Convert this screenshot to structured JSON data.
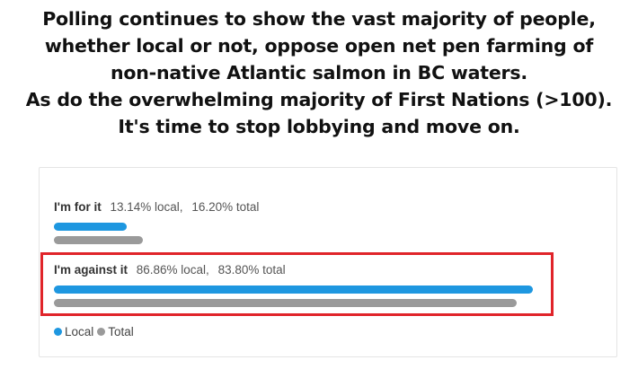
{
  "headline": {
    "lines": [
      "Polling continues to show the vast majority of people,",
      "whether local or not, oppose open net pen farming of",
      "non-native Atlantic salmon in BC waters.",
      "As do the overwhelming majority of First Nations (>100).",
      "It's time to stop lobbying and move on."
    ]
  },
  "colors": {
    "local": "#1e97e0",
    "total": "#9a9a9a",
    "highlight": "#e0242a"
  },
  "chart_data": {
    "type": "bar",
    "orientation": "horizontal",
    "categories": [
      "I'm for it",
      "I'm against it"
    ],
    "series": [
      {
        "name": "Local",
        "values": [
          13.14,
          86.86
        ]
      },
      {
        "name": "Total",
        "values": [
          16.2,
          83.8
        ]
      }
    ],
    "value_labels": [
      [
        "13.14% local,",
        "16.20% total"
      ],
      [
        "86.86% local,",
        "83.80% total"
      ]
    ],
    "xlim": [
      0,
      100
    ],
    "grid": false,
    "legend": "bottom-left",
    "highlighted_category": "I'm against it"
  }
}
